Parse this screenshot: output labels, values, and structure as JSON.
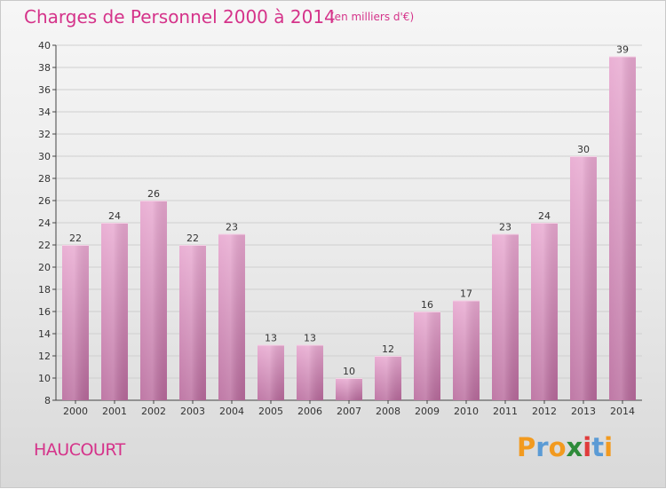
{
  "header": {
    "title": "Charges de Personnel 2000 à 2014",
    "subtitle": "(en milliers d'€)"
  },
  "footer": {
    "commune": "HAUCOURT",
    "logo": "Proxiti"
  },
  "colors": {
    "accent": "#d5338a",
    "bar_top": "#e8a8d0",
    "bar_bottom": "#b86a9c",
    "logo_letters": [
      "#f29a1f",
      "#5b9bd5",
      "#f29a1f",
      "#2e8b3a",
      "#e03b3b",
      "#5b9bd5",
      "#f29a1f"
    ]
  },
  "chart_data": {
    "type": "bar",
    "title": "Charges de Personnel 2000 à 2014",
    "subtitle": "(en milliers d'€)",
    "xlabel": "",
    "ylabel": "",
    "categories": [
      "2000",
      "2001",
      "2002",
      "2003",
      "2004",
      "2005",
      "2006",
      "2007",
      "2008",
      "2009",
      "2010",
      "2011",
      "2012",
      "2013",
      "2014"
    ],
    "values": [
      22,
      24,
      26,
      22,
      23,
      13,
      13,
      10,
      12,
      16,
      17,
      23,
      24,
      30,
      39
    ],
    "ylim": [
      8,
      40
    ],
    "yticks": [
      8,
      10,
      12,
      14,
      16,
      18,
      20,
      22,
      24,
      26,
      28,
      30,
      32,
      34,
      36,
      38,
      40
    ],
    "grid": true,
    "data_labels": true
  }
}
